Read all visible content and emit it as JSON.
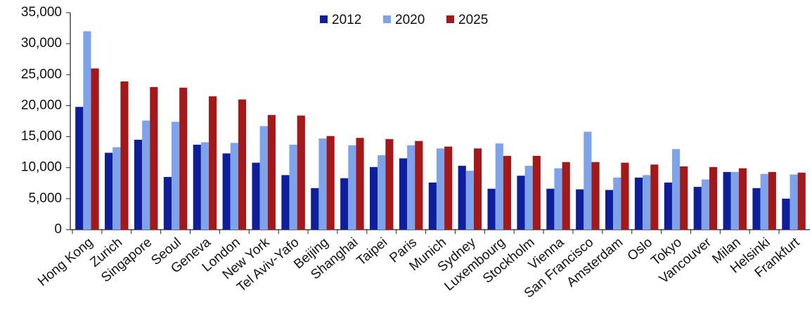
{
  "chart_data": {
    "type": "bar",
    "categories": [
      "Hong Kong",
      "Zurich",
      "Singapore",
      "Seoul",
      "Geneva",
      "London",
      "New York",
      "Tel Aviv-Yafo",
      "Beijing",
      "Shanghai",
      "Taipei",
      "Paris",
      "Munich",
      "Sydney",
      "Luxembourg",
      "Stockholm",
      "Vienna",
      "San Francisco",
      "Amsterdam",
      "Oslo",
      "Tokyo",
      "Vancouver",
      "Milan",
      "Helsinki",
      "Frankfurt"
    ],
    "series": [
      {
        "name": "2012",
        "color": "#0f1f99",
        "values": [
          19800,
          12400,
          14500,
          8500,
          13700,
          12300,
          10800,
          8800,
          6700,
          8300,
          10100,
          11500,
          7600,
          10300,
          6600,
          8700,
          6600,
          6500,
          6400,
          8400,
          7600,
          6900,
          9300,
          6700,
          5000
        ]
      },
      {
        "name": "2020",
        "color": "#7fa3ea",
        "values": [
          32000,
          13300,
          17600,
          17400,
          14100,
          14000,
          16700,
          13700,
          14700,
          13600,
          12000,
          13600,
          13100,
          9500,
          13900,
          10300,
          9900,
          15800,
          8400,
          8800,
          13000,
          8100,
          9300,
          9000,
          8900
        ]
      },
      {
        "name": "2025",
        "color": "#a31919",
        "values": [
          26000,
          23900,
          23000,
          22900,
          21500,
          21000,
          18500,
          18400,
          15100,
          14800,
          14600,
          14300,
          13400,
          13100,
          11900,
          11900,
          10900,
          10900,
          10800,
          10500,
          10200,
          10100,
          9900,
          9300,
          9200
        ]
      }
    ],
    "ylim": [
      0,
      35000
    ],
    "yticks": [
      0,
      {
        "value": 5000,
        "label": "5,000"
      },
      {
        "value": 10000,
        "label": "10,000"
      },
      {
        "value": 15000,
        "label": "15,000"
      },
      {
        "value": 20000,
        "label": "20,000"
      },
      {
        "value": 25000,
        "label": "25,000"
      },
      {
        "value": 30000,
        "label": "30,000"
      },
      {
        "value": 35000,
        "label": "35,000"
      }
    ],
    "grid": false,
    "legend": "top"
  }
}
